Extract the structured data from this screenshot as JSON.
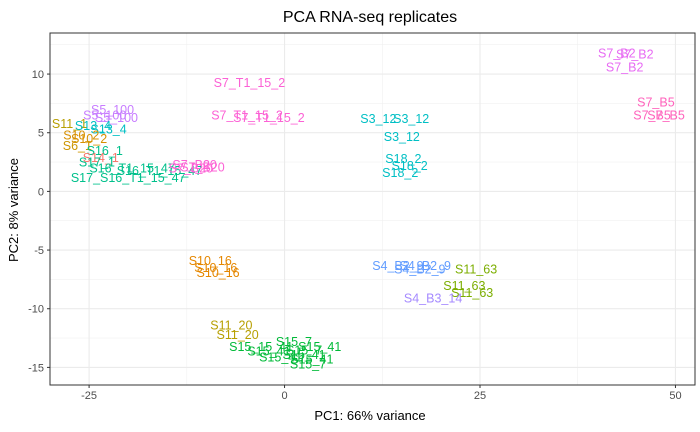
{
  "chart_data": {
    "type": "scatter",
    "title": "PCA RNA-seq replicates",
    "xlabel": "PC1: 66% variance",
    "ylabel": "PC2: 8% variance",
    "xlim": [
      -30,
      52.5
    ],
    "ylim": [
      -16.5,
      13.5
    ],
    "xticks": [
      -25,
      0,
      25,
      50
    ],
    "yticks": [
      -15,
      -10,
      -5,
      0,
      5,
      10
    ],
    "grid": true,
    "marker": "text-label",
    "points": [
      {
        "label": "S7_B2",
        "x": 42.5,
        "y": 11.8,
        "color": "#e76bf3"
      },
      {
        "label": "S7_B2",
        "x": 44.8,
        "y": 11.7,
        "color": "#e76bf3"
      },
      {
        "label": "S7_B2",
        "x": 43.5,
        "y": 10.6,
        "color": "#e76bf3"
      },
      {
        "label": "S7_B5",
        "x": 47.5,
        "y": 7.6,
        "color": "#ff62bc"
      },
      {
        "label": "S7_B5",
        "x": 47.0,
        "y": 6.5,
        "color": "#ff62bc"
      },
      {
        "label": "S7_B5",
        "x": 48.8,
        "y": 6.5,
        "color": "#ff62bc"
      },
      {
        "label": "S7_T1_15_2",
        "x": -4.5,
        "y": 9.3,
        "color": "#fc61d5"
      },
      {
        "label": "S7_T1_15_2",
        "x": -4.8,
        "y": 6.5,
        "color": "#fc61d5"
      },
      {
        "label": "S7_T1_15_2",
        "x": -2.0,
        "y": 6.3,
        "color": "#fc61d5"
      },
      {
        "label": "S3_12",
        "x": 12.0,
        "y": 6.2,
        "color": "#00bfc4"
      },
      {
        "label": "S3_12",
        "x": 16.2,
        "y": 6.2,
        "color": "#00bfc4"
      },
      {
        "label": "S3_12",
        "x": 15.0,
        "y": 4.7,
        "color": "#00bfc4"
      },
      {
        "label": "S18_2",
        "x": 15.2,
        "y": 2.8,
        "color": "#00bfc4"
      },
      {
        "label": "S18_2",
        "x": 16.0,
        "y": 2.2,
        "color": "#00bfc4"
      },
      {
        "label": "S18_2",
        "x": 14.8,
        "y": 1.6,
        "color": "#00bfc4"
      },
      {
        "label": "S5_100",
        "x": -22.0,
        "y": 7.0,
        "color": "#c77cff"
      },
      {
        "label": "S5_100",
        "x": -23.0,
        "y": 6.5,
        "color": "#c77cff"
      },
      {
        "label": "S5_100",
        "x": -21.5,
        "y": 6.3,
        "color": "#c77cff"
      },
      {
        "label": "S11_1",
        "x": -27.5,
        "y": 5.8,
        "color": "#b79f00"
      },
      {
        "label": "S13_4",
        "x": -24.5,
        "y": 5.6,
        "color": "#00bfc4"
      },
      {
        "label": "S13_4",
        "x": -22.5,
        "y": 5.3,
        "color": "#00bfc4"
      },
      {
        "label": "S10_2",
        "x": -26.0,
        "y": 4.8,
        "color": "#d89000"
      },
      {
        "label": "S10_2",
        "x": -25.0,
        "y": 4.5,
        "color": "#d89000"
      },
      {
        "label": "S6_1",
        "x": -26.5,
        "y": 3.9,
        "color": "#cd9600"
      },
      {
        "label": "S16_1",
        "x": -23.0,
        "y": 3.5,
        "color": "#00c08b"
      },
      {
        "label": "S14_1",
        "x": -23.5,
        "y": 2.9,
        "color": "#f8766d"
      },
      {
        "label": "S17_1",
        "x": -24.0,
        "y": 2.5,
        "color": "#00c08b"
      },
      {
        "label": "S16_T1_15_47",
        "x": -19.5,
        "y": 2.0,
        "color": "#00c08b"
      },
      {
        "label": "S16_T1_15_47",
        "x": -16.0,
        "y": 1.8,
        "color": "#00c08b"
      },
      {
        "label": "S17_S16_T1_15_47",
        "x": -20.0,
        "y": 1.2,
        "color": "#00c08b"
      },
      {
        "label": "S7_B20",
        "x": -11.5,
        "y": 2.3,
        "color": "#fc61d5"
      },
      {
        "label": "S7_B20",
        "x": -12.0,
        "y": 2.0,
        "color": "#fc61d5"
      },
      {
        "label": "S7_B20",
        "x": -10.5,
        "y": 2.1,
        "color": "#fc61d5"
      },
      {
        "label": "S4_B2_9",
        "x": 14.5,
        "y": -6.3,
        "color": "#619cff"
      },
      {
        "label": "S4_B2_9",
        "x": 18.0,
        "y": -6.3,
        "color": "#619cff"
      },
      {
        "label": "S4_B2_9",
        "x": 17.3,
        "y": -6.6,
        "color": "#619cff"
      },
      {
        "label": "S11_63",
        "x": 24.5,
        "y": -6.6,
        "color": "#7cae00"
      },
      {
        "label": "S11_63",
        "x": 23.0,
        "y": -8.0,
        "color": "#7cae00"
      },
      {
        "label": "S11_63",
        "x": 24.0,
        "y": -8.6,
        "color": "#7cae00"
      },
      {
        "label": "S4_B3_14",
        "x": 19.0,
        "y": -9.1,
        "color": "#a58aff"
      },
      {
        "label": "S10_16",
        "x": -9.5,
        "y": -5.9,
        "color": "#e58700"
      },
      {
        "label": "S10_16",
        "x": -8.8,
        "y": -6.5,
        "color": "#e58700"
      },
      {
        "label": "S10_16",
        "x": -8.5,
        "y": -6.9,
        "color": "#e58700"
      },
      {
        "label": "S11_20",
        "x": -6.8,
        "y": -11.4,
        "color": "#b79f00"
      },
      {
        "label": "S11_20",
        "x": -6.0,
        "y": -12.2,
        "color": "#b79f00"
      },
      {
        "label": "S15_7",
        "x": 1.2,
        "y": -12.8,
        "color": "#00ba38"
      },
      {
        "label": "S15_7",
        "x": 2.5,
        "y": -13.5,
        "color": "#00ba38"
      },
      {
        "label": "S15_7",
        "x": 3.0,
        "y": -14.7,
        "color": "#00ba38"
      },
      {
        "label": "S15_41",
        "x": 4.5,
        "y": -13.2,
        "color": "#00ba38"
      },
      {
        "label": "S15_41",
        "x": 2.5,
        "y": -13.9,
        "color": "#00ba38"
      },
      {
        "label": "S15_41",
        "x": 3.5,
        "y": -14.3,
        "color": "#00ba38"
      },
      {
        "label": "S15_41",
        "x": -2.0,
        "y": -13.6,
        "color": "#00ba38"
      },
      {
        "label": "S15_41",
        "x": -0.5,
        "y": -14.1,
        "color": "#00ba38"
      },
      {
        "label": "S15_15_41",
        "x": -3.0,
        "y": -13.2,
        "color": "#00ba38"
      }
    ]
  }
}
